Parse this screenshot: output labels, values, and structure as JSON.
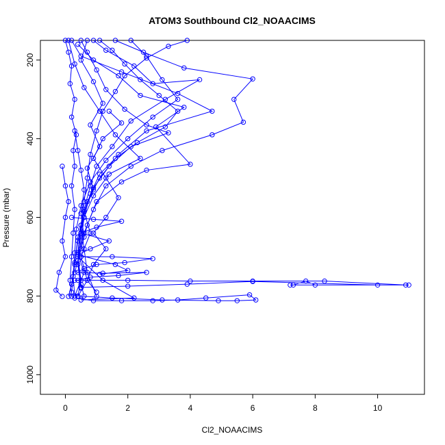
{
  "chart_data": {
    "type": "scatter",
    "title": "ATOM3 Southbound Cl2_NOAACIMS",
    "xlabel": "Cl2_NOAACIMS",
    "ylabel": "Pressure (mbar)",
    "xlim": [
      -0.8,
      11.5
    ],
    "ylim": [
      1050,
      150
    ],
    "y_reversed": true,
    "x_ticks": [
      0,
      2,
      4,
      6,
      8,
      10
    ],
    "y_ticks": [
      200,
      400,
      600,
      800,
      1000
    ],
    "grid": false,
    "legend": "none",
    "color": "#0000ff",
    "series": [
      {
        "values": [
          [
            0.9,
            150
          ],
          [
            1.3,
            175
          ],
          [
            2.2,
            215
          ],
          [
            2.8,
            260
          ],
          [
            4.3,
            250
          ],
          [
            3.2,
            300
          ],
          [
            2.1,
            355
          ],
          [
            1.5,
            420
          ],
          [
            1.0,
            470
          ],
          [
            0.8,
            520
          ],
          [
            0.6,
            580
          ],
          [
            0.5,
            640
          ],
          [
            0.4,
            700
          ],
          [
            0.5,
            760
          ],
          [
            0.4,
            800
          ]
        ]
      },
      {
        "values": [
          [
            0.2,
            150
          ],
          [
            0.5,
            190
          ],
          [
            1.8,
            230
          ],
          [
            3.6,
            285
          ],
          [
            4.7,
            330
          ],
          [
            2.6,
            380
          ],
          [
            1.7,
            440
          ],
          [
            1.1,
            500
          ],
          [
            0.7,
            560
          ],
          [
            0.5,
            620
          ],
          [
            0.4,
            690
          ],
          [
            0.6,
            740
          ],
          [
            0.3,
            800
          ]
        ]
      },
      {
        "values": [
          [
            1.6,
            150
          ],
          [
            2.5,
            180
          ],
          [
            3.8,
            220
          ],
          [
            6.0,
            248
          ],
          [
            5.4,
            300
          ],
          [
            5.7,
            358
          ],
          [
            4.7,
            390
          ],
          [
            3.1,
            430
          ],
          [
            2.1,
            470
          ],
          [
            1.3,
            520
          ],
          [
            0.9,
            580
          ],
          [
            0.6,
            640
          ],
          [
            0.4,
            700
          ],
          [
            1.2,
            760
          ],
          [
            2.2,
            805
          ],
          [
            0.5,
            810
          ]
        ]
      },
      {
        "values": [
          [
            0.4,
            160
          ],
          [
            0.9,
            200
          ],
          [
            1.7,
            240
          ],
          [
            2.4,
            290
          ],
          [
            3.8,
            320
          ],
          [
            2.9,
            370
          ],
          [
            4.0,
            465
          ],
          [
            2.6,
            480
          ],
          [
            1.8,
            510
          ],
          [
            1.0,
            560
          ],
          [
            0.7,
            620
          ],
          [
            0.5,
            680
          ],
          [
            0.3,
            740
          ]
        ]
      },
      {
        "values": [
          [
            0.1,
            150
          ],
          [
            0.3,
            210
          ],
          [
            0.6,
            270
          ],
          [
            1.1,
            330
          ],
          [
            1.6,
            390
          ],
          [
            2.4,
            450
          ],
          [
            1.4,
            490
          ],
          [
            0.9,
            545
          ],
          [
            0.6,
            600
          ],
          [
            0.4,
            660
          ],
          [
            0.3,
            715
          ],
          [
            0.2,
            770
          ],
          [
            0.1,
            801
          ]
        ]
      },
      {
        "values": [
          [
            2.1,
            150
          ],
          [
            2.6,
            190
          ],
          [
            3.1,
            250
          ],
          [
            3.6,
            300
          ],
          [
            2.8,
            345
          ],
          [
            2.0,
            400
          ],
          [
            1.3,
            455
          ],
          [
            0.8,
            510
          ],
          [
            0.5,
            570
          ],
          [
            0.35,
            630
          ],
          [
            0.3,
            690
          ],
          [
            0.25,
            750
          ],
          [
            0.3,
            800
          ]
        ]
      },
      {
        "values": [
          [
            0.5,
            150
          ],
          [
            0.7,
            180
          ],
          [
            1.0,
            225
          ],
          [
            1.3,
            275
          ],
          [
            1.9,
            325
          ],
          [
            2.6,
            365
          ],
          [
            3.3,
            385
          ],
          [
            2.1,
            420
          ],
          [
            1.4,
            470
          ],
          [
            0.9,
            525
          ],
          [
            0.6,
            585
          ],
          [
            0.4,
            650
          ],
          [
            0.3,
            720
          ],
          [
            0.2,
            790
          ]
        ]
      },
      {
        "values": [
          [
            0.3,
            760
          ],
          [
            2.0,
            760
          ],
          [
            4.0,
            762
          ],
          [
            6.0,
            762
          ],
          [
            8.3,
            762
          ],
          [
            10.9,
            772
          ],
          [
            11.0,
            772
          ],
          [
            8.0,
            772
          ],
          [
            7.7,
            762
          ],
          [
            7.3,
            772
          ],
          [
            7.2,
            772
          ],
          [
            10.0,
            772
          ],
          [
            6.0,
            763
          ],
          [
            3.9,
            770
          ],
          [
            2.0,
            775
          ],
          [
            0.5,
            778
          ]
        ]
      },
      {
        "values": [
          [
            0.4,
            800
          ],
          [
            1.5,
            805
          ],
          [
            3.1,
            810
          ],
          [
            4.9,
            812
          ],
          [
            5.5,
            812
          ],
          [
            6.1,
            810
          ],
          [
            5.9,
            797
          ],
          [
            4.5,
            805
          ],
          [
            3.6,
            810
          ],
          [
            2.8,
            812
          ],
          [
            1.8,
            812
          ],
          [
            0.9,
            812
          ],
          [
            0.3,
            805
          ]
        ]
      },
      {
        "values": [
          [
            0.5,
            700
          ],
          [
            1.5,
            700
          ],
          [
            2.8,
            705
          ],
          [
            1.9,
            715
          ],
          [
            1.0,
            720
          ],
          [
            0.6,
            730
          ],
          [
            0.4,
            740
          ],
          [
            1.2,
            742
          ],
          [
            2.6,
            740
          ],
          [
            1.7,
            748
          ],
          [
            0.8,
            752
          ],
          [
            0.4,
            760
          ]
        ]
      },
      {
        "values": [
          [
            0.3,
            380
          ],
          [
            0.4,
            430
          ],
          [
            0.5,
            480
          ],
          [
            0.6,
            530
          ],
          [
            0.5,
            590
          ],
          [
            0.6,
            650
          ],
          [
            0.4,
            710
          ],
          [
            0.5,
            770
          ],
          [
            0.6,
            800
          ]
        ]
      },
      {
        "values": [
          [
            -0.1,
            470
          ],
          [
            0.0,
            520
          ],
          [
            0.1,
            560
          ],
          [
            0.0,
            600
          ],
          [
            -0.1,
            660
          ],
          [
            0.0,
            700
          ],
          [
            -0.2,
            740
          ],
          [
            -0.3,
            785
          ],
          [
            -0.1,
            801
          ]
        ]
      },
      {
        "values": [
          [
            1.4,
            330
          ],
          [
            1.8,
            360
          ],
          [
            1.2,
            400
          ],
          [
            0.9,
            450
          ],
          [
            1.3,
            500
          ],
          [
            1.7,
            550
          ],
          [
            1.3,
            600
          ],
          [
            0.9,
            640
          ],
          [
            1.3,
            680
          ],
          [
            0.9,
            720
          ],
          [
            0.7,
            760
          ],
          [
            1.0,
            790
          ]
        ]
      },
      {
        "values": [
          [
            0.0,
            150
          ],
          [
            0.1,
            180
          ],
          [
            0.2,
            215
          ],
          [
            0.15,
            260
          ],
          [
            0.3,
            300
          ],
          [
            0.2,
            345
          ],
          [
            0.35,
            390
          ],
          [
            0.25,
            430
          ],
          [
            0.3,
            470
          ],
          [
            0.2,
            520
          ],
          [
            0.3,
            580
          ],
          [
            0.25,
            640
          ],
          [
            0.2,
            700
          ],
          [
            0.15,
            760
          ],
          [
            0.2,
            801
          ]
        ]
      },
      {
        "values": [
          [
            3.9,
            150
          ],
          [
            3.3,
            165
          ],
          [
            2.6,
            195
          ],
          [
            1.9,
            240
          ],
          [
            1.6,
            280
          ],
          [
            1.2,
            330
          ],
          [
            1.0,
            380
          ],
          [
            0.8,
            440
          ],
          [
            0.7,
            500
          ],
          [
            0.6,
            560
          ],
          [
            0.5,
            620
          ],
          [
            0.6,
            680
          ],
          [
            0.7,
            740
          ],
          [
            1.0,
            801
          ]
        ]
      },
      {
        "values": [
          [
            1.1,
            150
          ],
          [
            1.5,
            175
          ],
          [
            1.9,
            210
          ],
          [
            2.4,
            250
          ],
          [
            3.0,
            290
          ],
          [
            3.6,
            330
          ],
          [
            3.2,
            370
          ],
          [
            2.3,
            410
          ],
          [
            1.6,
            450
          ],
          [
            1.1,
            490
          ],
          [
            0.8,
            540
          ],
          [
            0.6,
            600
          ],
          [
            0.5,
            660
          ],
          [
            0.4,
            720
          ],
          [
            0.5,
            780
          ]
        ]
      },
      {
        "values": [
          [
            0.7,
            150
          ],
          [
            0.5,
            200
          ],
          [
            0.9,
            255
          ],
          [
            1.2,
            310
          ],
          [
            0.8,
            365
          ],
          [
            1.1,
            420
          ],
          [
            0.7,
            475
          ],
          [
            0.9,
            530
          ],
          [
            0.6,
            585
          ],
          [
            0.8,
            640
          ],
          [
            0.5,
            700
          ],
          [
            0.7,
            760
          ],
          [
            0.4,
            801
          ]
        ]
      },
      {
        "values": [
          [
            0.2,
            600
          ],
          [
            0.9,
            605
          ],
          [
            1.8,
            610
          ],
          [
            1.0,
            625
          ],
          [
            0.5,
            640
          ],
          [
            1.4,
            660
          ],
          [
            0.8,
            680
          ],
          [
            0.4,
            695
          ],
          [
            1.6,
            720
          ],
          [
            2.0,
            735
          ],
          [
            1.1,
            745
          ]
        ]
      }
    ]
  }
}
